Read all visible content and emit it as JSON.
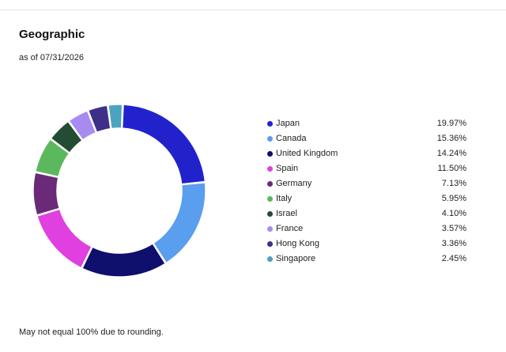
{
  "header": {
    "title": "Geographic",
    "as_of": "as of 07/31/2026"
  },
  "footnote": "May not equal 100% due to rounding.",
  "chart_data": {
    "type": "pie",
    "variant": "donut",
    "title": "Geographic",
    "legend_placement": "right",
    "slices": [
      {
        "name": "Japan",
        "value": 19.97,
        "label": "19.97%",
        "color": "#2222cc"
      },
      {
        "name": "Canada",
        "value": 15.36,
        "label": "15.36%",
        "color": "#5a9ef0"
      },
      {
        "name": "United Kingdom",
        "value": 14.24,
        "label": "14.24%",
        "color": "#0f0f6e"
      },
      {
        "name": "Spain",
        "value": 11.5,
        "label": "11.50%",
        "color": "#e040e0"
      },
      {
        "name": "Germany",
        "value": 7.13,
        "label": "7.13%",
        "color": "#6a2a78"
      },
      {
        "name": "Italy",
        "value": 5.95,
        "label": "5.95%",
        "color": "#5cb85c"
      },
      {
        "name": "Israel",
        "value": 4.1,
        "label": "4.10%",
        "color": "#234d33"
      },
      {
        "name": "France",
        "value": 3.57,
        "label": "3.57%",
        "color": "#a78bf0"
      },
      {
        "name": "Hong Kong",
        "value": 3.36,
        "label": "3.36%",
        "color": "#3d2f8a"
      },
      {
        "name": "Singapore",
        "value": 2.45,
        "label": "2.45%",
        "color": "#4ba3bf"
      }
    ]
  }
}
